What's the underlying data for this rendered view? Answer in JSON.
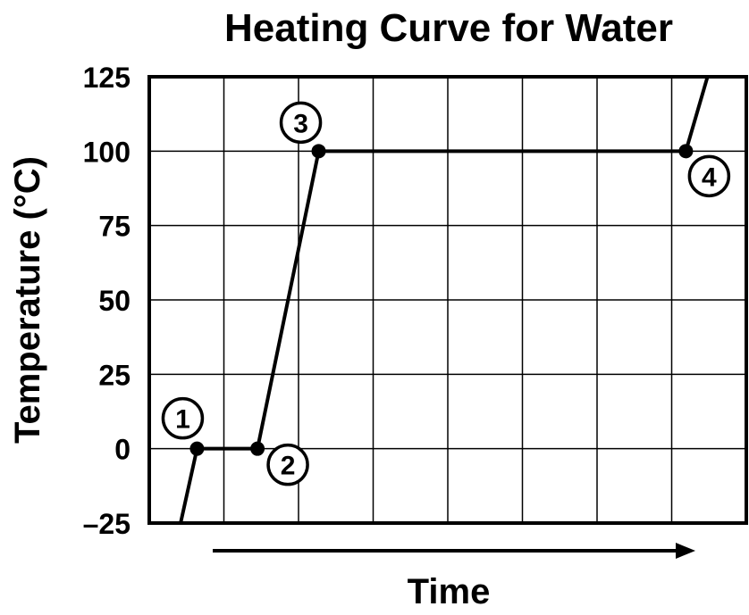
{
  "chart_data": {
    "type": "line",
    "title": "Heating Curve for Water",
    "xlabel": "Time",
    "ylabel": "Temperature (°C)",
    "ylim": [
      -25,
      125
    ],
    "yticks": [
      "125",
      "100",
      "75",
      "50",
      "25",
      "0",
      "–25"
    ],
    "ytick_values": [
      125,
      100,
      75,
      50,
      25,
      0,
      -25
    ],
    "xlim": [
      0,
      8
    ],
    "x_ticks_labeled": false,
    "grid": true,
    "x_axis_arrow": true,
    "series": [
      {
        "x": [
          0.42,
          0.64,
          1.45,
          2.27,
          7.19,
          7.48
        ],
        "y": [
          -25,
          0,
          0,
          100,
          100,
          125
        ]
      }
    ],
    "marked_points": [
      {
        "label": "1",
        "x": 0.64,
        "y": 0
      },
      {
        "label": "2",
        "x": 1.45,
        "y": 0
      },
      {
        "label": "3",
        "x": 2.27,
        "y": 100
      },
      {
        "label": "4",
        "x": 7.19,
        "y": 100
      }
    ],
    "colors": {
      "line": "#000000",
      "background": "#ffffff"
    }
  }
}
